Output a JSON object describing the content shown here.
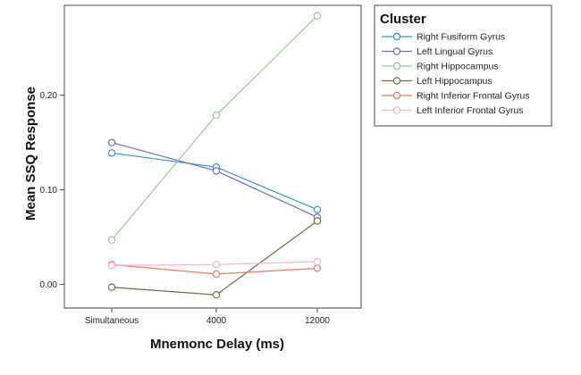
{
  "chart_data": {
    "type": "line",
    "x": [
      "Simultaneous",
      "4000",
      "12000"
    ],
    "xlabel": "Mnemonc Delay (ms)",
    "ylabel": "Mean SSQ Response",
    "ylim": [
      -0.025,
      0.295
    ],
    "yticks": [
      "0.00",
      "0.10",
      "0.20"
    ],
    "grid": false,
    "marker": "open-circle",
    "legend": {
      "title": "Cluster",
      "placement": "right"
    },
    "series": [
      {
        "name": "Right Fusiform Gyrus",
        "color": "#3a8fc2",
        "values": [
          0.139,
          0.124,
          0.079
        ]
      },
      {
        "name": "Left Lingual Gyrus",
        "color": "#6f6fb3",
        "values": [
          0.15,
          0.12,
          0.071
        ]
      },
      {
        "name": "Right Hippocampus",
        "color": "#9bca96",
        "values": [
          0.047,
          0.179,
          0.284
        ]
      },
      {
        "name": "Left Hippocampus",
        "color": "#6e6e48",
        "values": [
          -0.003,
          -0.011,
          0.067
        ]
      },
      {
        "name": "Right Inferior Frontal Gyrus",
        "color": "#ef7a66",
        "values": [
          0.021,
          0.011,
          0.017
        ]
      },
      {
        "name": "Left Inferior Frontal Gyrus",
        "color": "#f2b4d2",
        "values": [
          0.02,
          0.021,
          0.024
        ]
      }
    ]
  }
}
